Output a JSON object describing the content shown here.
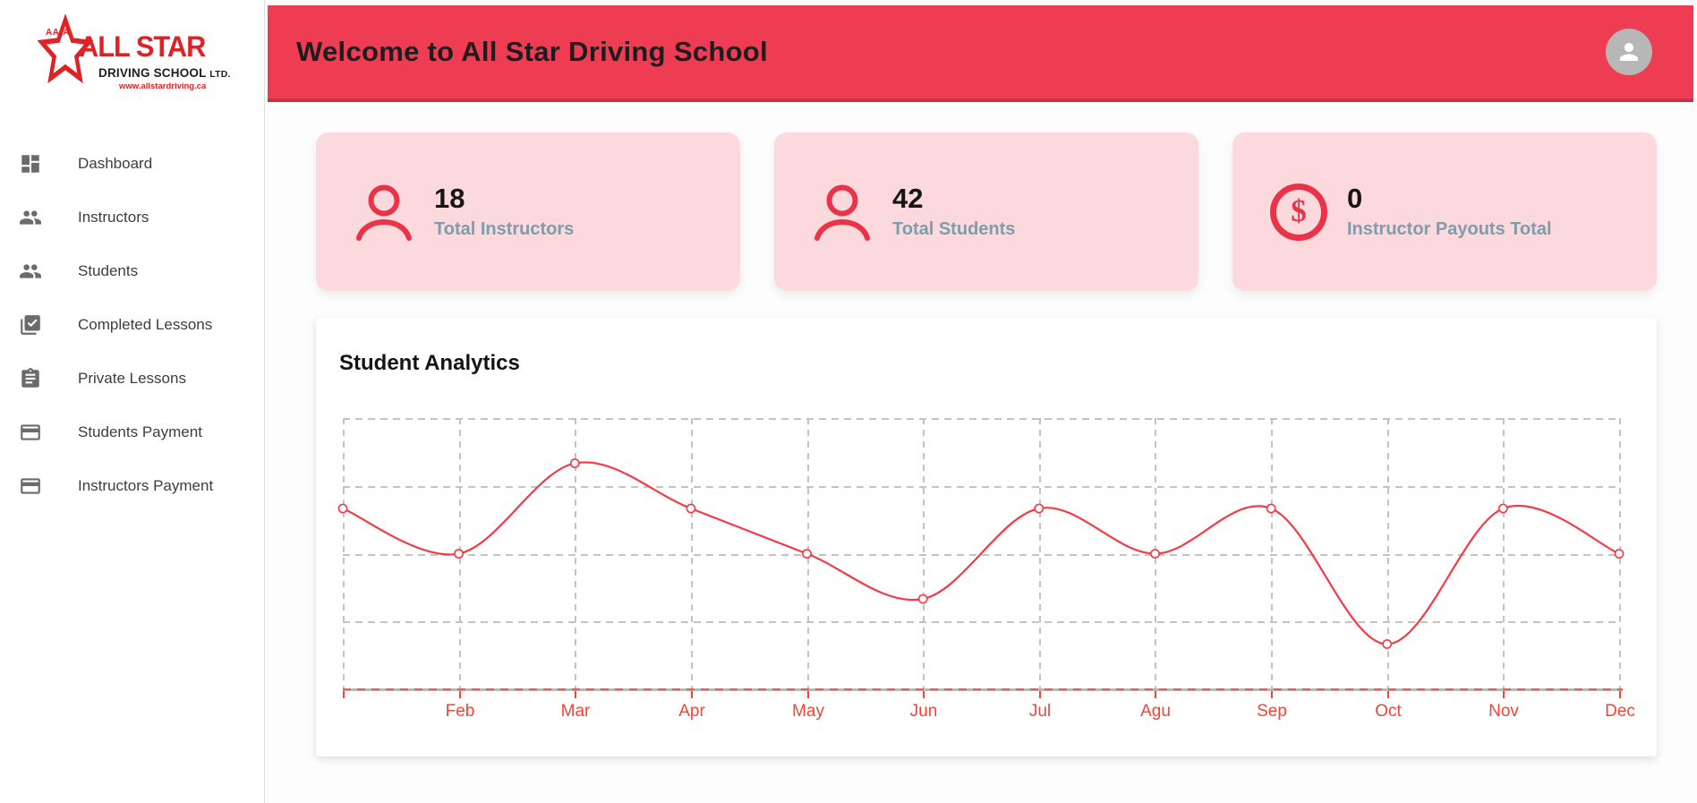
{
  "sidebar": {
    "logo": {
      "prefix": "AA-A",
      "name": "ALL STAR",
      "tagline": "DRIVING SCHOOL",
      "suffix": "LTD.",
      "website": "www.allstardriving.ca"
    },
    "items": [
      {
        "label": "Dashboard",
        "icon": "dashboard-icon"
      },
      {
        "label": "Instructors",
        "icon": "people-icon"
      },
      {
        "label": "Students",
        "icon": "people-icon"
      },
      {
        "label": "Completed Lessons",
        "icon": "completed-lessons-icon"
      },
      {
        "label": "Private Lessons",
        "icon": "assignment-icon"
      },
      {
        "label": "Students Payment",
        "icon": "credit-card-icon"
      },
      {
        "label": "Instructors Payment",
        "icon": "credit-card-icon"
      }
    ]
  },
  "header": {
    "title": "Welcome to All Star Driving School",
    "avatar_icon": "user-avatar-icon"
  },
  "stats": [
    {
      "value": "18",
      "label": "Total Instructors",
      "icon": "person-outline-icon"
    },
    {
      "value": "42",
      "label": "Total Students",
      "icon": "person-outline-icon"
    },
    {
      "value": "0",
      "label": "Instructor Payouts Total",
      "icon": "dollar-circle-icon"
    }
  ],
  "analytics_panel": {
    "title": "Student Analytics"
  },
  "chart_data": {
    "type": "line",
    "title": "Student Analytics",
    "categories": [
      "",
      "Feb",
      "Mar",
      "Apr",
      "May",
      "Jun",
      "Jul",
      "Agu",
      "Sep",
      "Oct",
      "Nov",
      "Dec"
    ],
    "values": [
      8,
      6,
      10,
      8,
      6,
      4,
      8,
      6,
      8,
      2,
      8,
      6
    ],
    "ylim": [
      0,
      12
    ],
    "y_axis_labels": "none",
    "legend": "none",
    "grid": "dashed",
    "line_color": "#f23b47",
    "tick_label_color": "#f44336",
    "point_style": "open-circle"
  },
  "colors": {
    "banner": "#ee3c53",
    "banner_border": "#cb3046",
    "card_bg": "#fcd9dc",
    "icon_red": "#ea3348",
    "stat_label": "#7d9cac",
    "logo_red": "#e02227",
    "sidebar_text": "#3d3d3d",
    "sidebar_icon": "#6b6b6b",
    "grid_line": "#c3c3c3",
    "avatar_bg": "#b7b7b7"
  }
}
